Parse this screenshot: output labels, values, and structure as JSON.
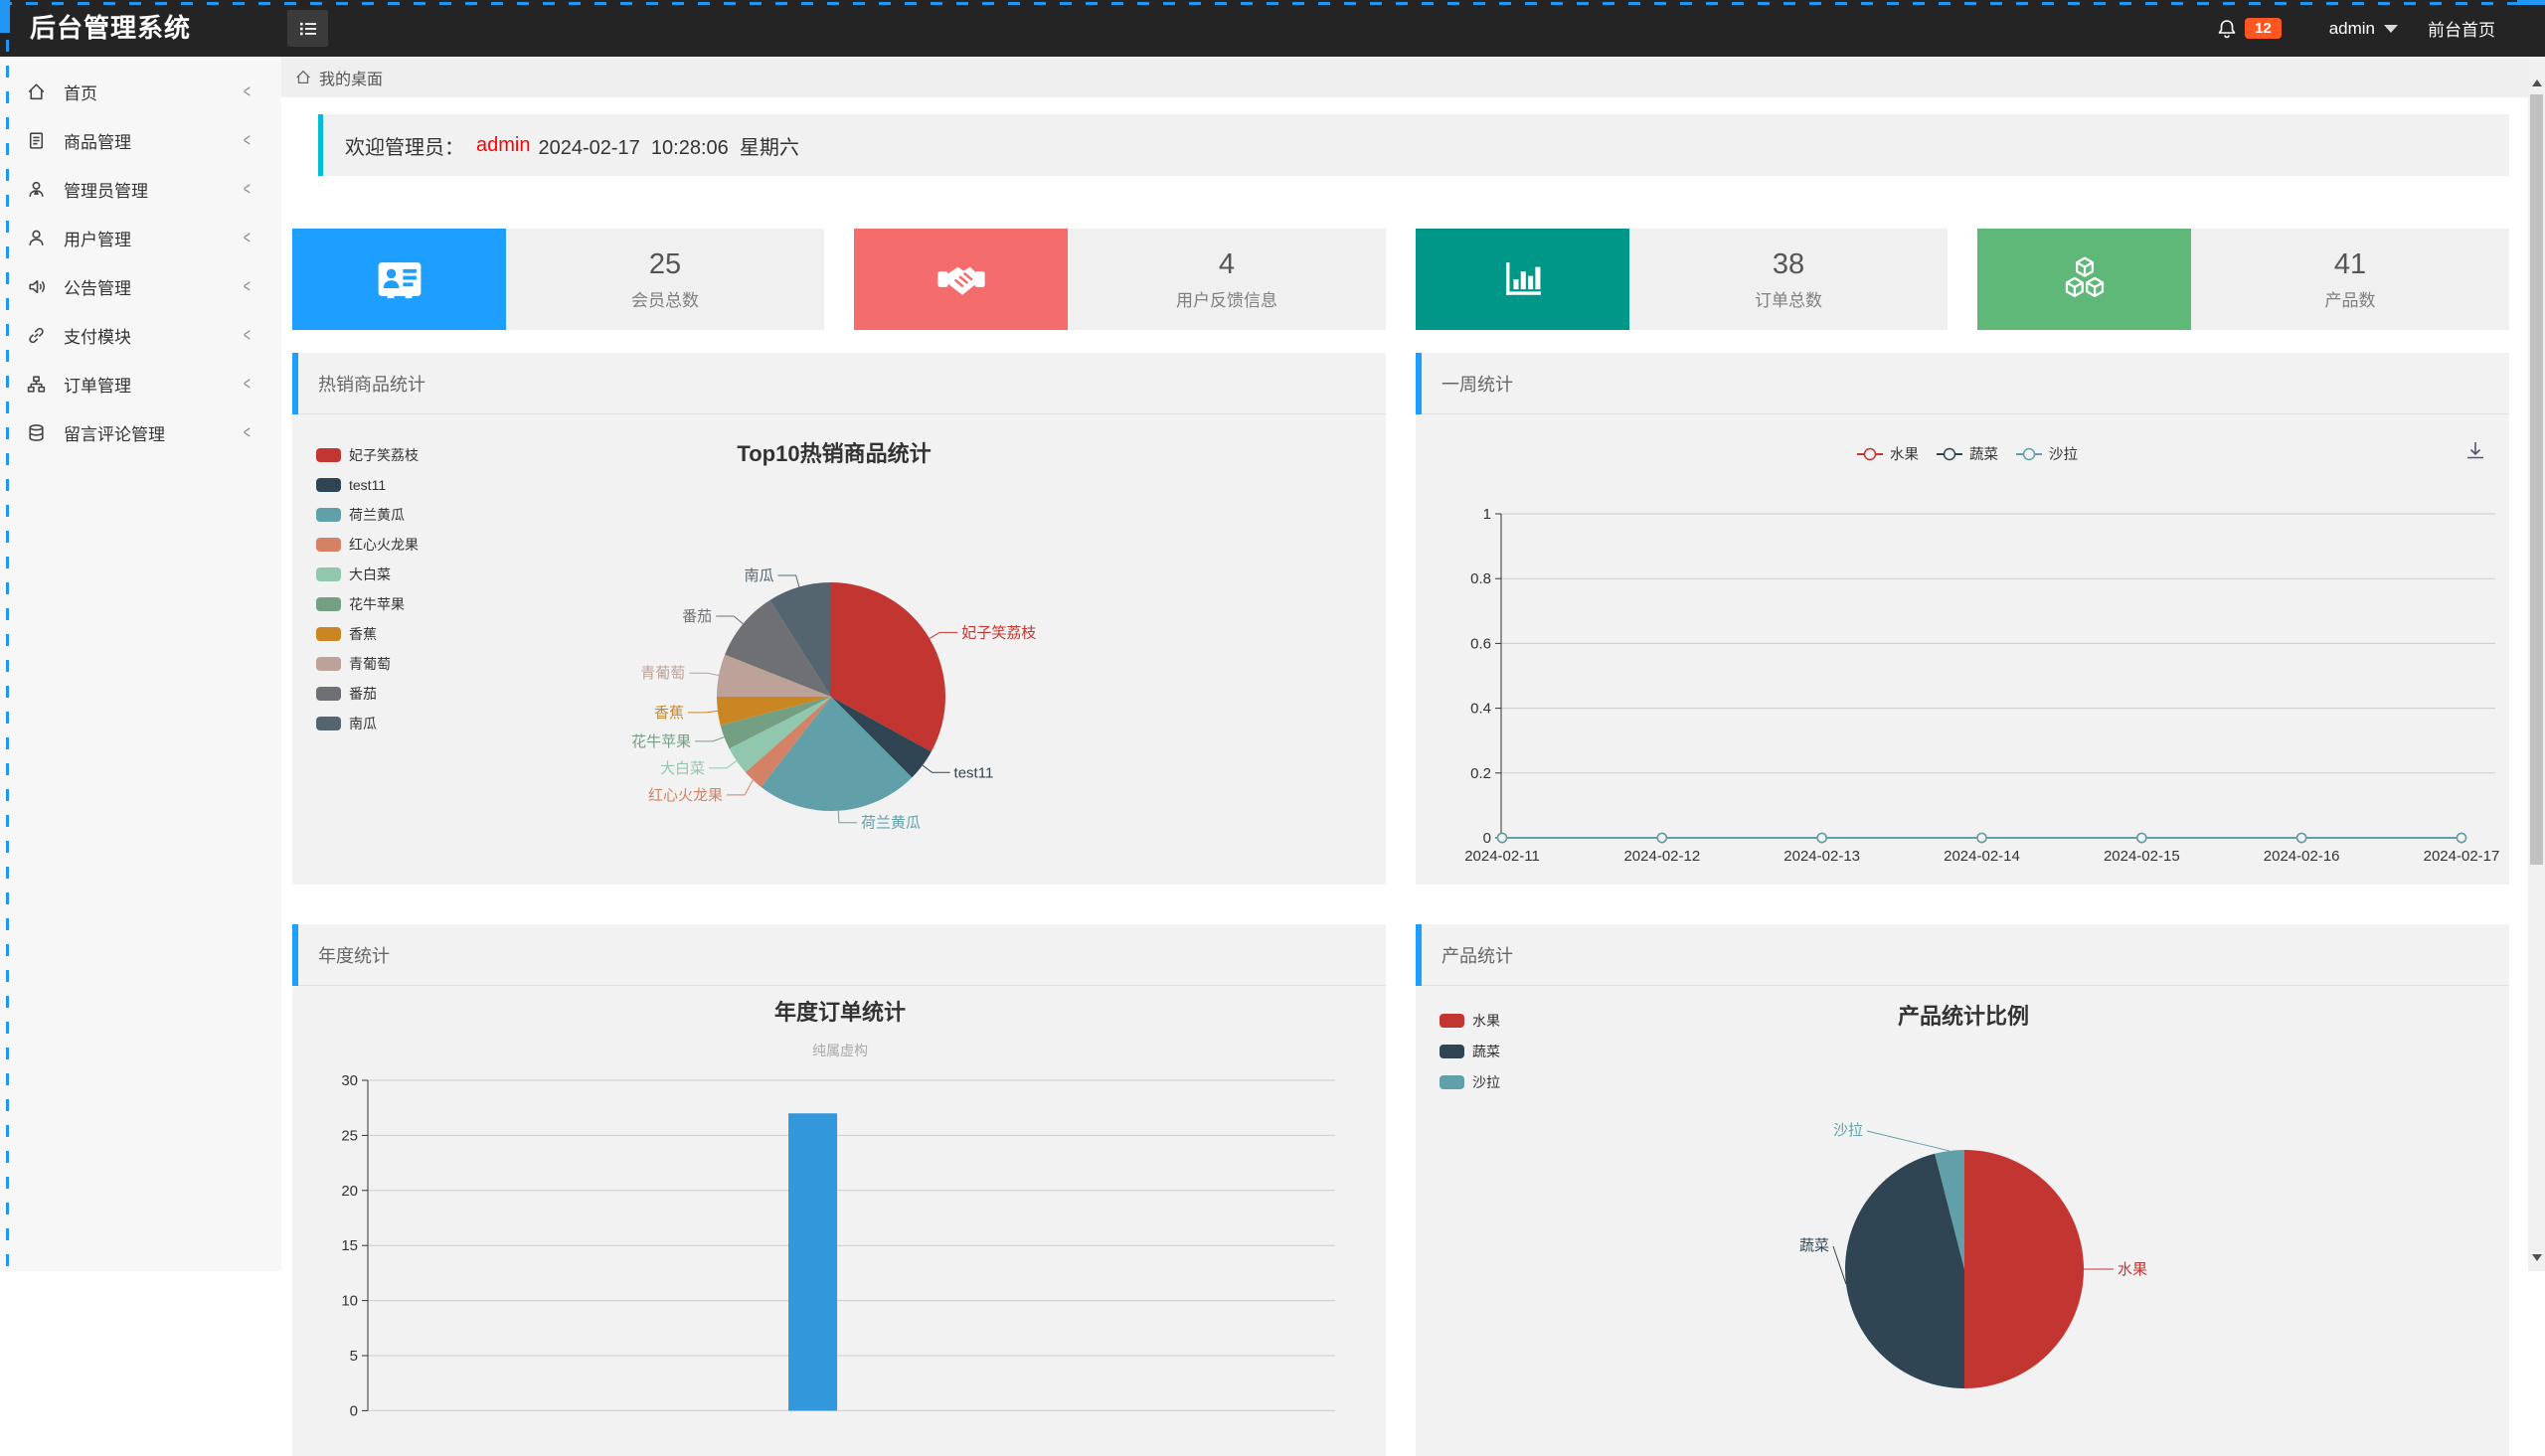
{
  "topbar": {
    "title": "后台管理系统",
    "notification_count": "12",
    "user": "admin",
    "frontend_link": "前台首页",
    "badge_color": "#ff5722"
  },
  "sidebar": {
    "items": [
      {
        "label": "首页",
        "icon": "home-icon"
      },
      {
        "label": "商品管理",
        "icon": "document-icon"
      },
      {
        "label": "管理员管理",
        "icon": "admin-user-icon"
      },
      {
        "label": "用户管理",
        "icon": "user-icon"
      },
      {
        "label": "公告管理",
        "icon": "speaker-icon"
      },
      {
        "label": "支付模块",
        "icon": "link-icon"
      },
      {
        "label": "订单管理",
        "icon": "sitemap-icon"
      },
      {
        "label": "留言评论管理",
        "icon": "database-icon"
      }
    ]
  },
  "breadcrumb": {
    "label": "我的桌面",
    "icon": "home-icon"
  },
  "welcome": {
    "prefix": "欢迎管理员：",
    "username": "admin",
    "datetime": "2024-02-17  10:28:06  星期六",
    "accent_color": "#00bcd4"
  },
  "stat_cards": [
    {
      "value": "25",
      "label": "会员总数",
      "icon": "id-card-icon",
      "color": "#1E9FFF"
    },
    {
      "value": "4",
      "label": "用户反馈信息",
      "icon": "handshake-icon",
      "color": "#f56c6c"
    },
    {
      "value": "38",
      "label": "订单总数",
      "icon": "bar-chart-icon",
      "color": "#009688"
    },
    {
      "value": "41",
      "label": "产品数",
      "icon": "cubes-icon",
      "color": "#5FB878"
    }
  ],
  "panels": [
    {
      "title": "热销商品统计"
    },
    {
      "title": "一周统计"
    },
    {
      "title": "年度统计"
    },
    {
      "title": "产品统计"
    }
  ],
  "chart_data": [
    {
      "type": "pie",
      "panel": "热销商品统计",
      "title": "Top10热销商品统计",
      "legend_position": "left-vertical",
      "note": "slice values are percentages estimated from angles",
      "slices": [
        {
          "name": "妃子笑荔枝",
          "value": 33,
          "color": "#c23531"
        },
        {
          "name": "test11",
          "value": 4.5,
          "color": "#2f4554"
        },
        {
          "name": "荷兰黄瓜",
          "value": 23,
          "color": "#61a0a8"
        },
        {
          "name": "红心火龙果",
          "value": 3,
          "color": "#d48265"
        },
        {
          "name": "大白菜",
          "value": 4,
          "color": "#91c7ae"
        },
        {
          "name": "花牛苹果",
          "value": 3.5,
          "color": "#749f83"
        },
        {
          "name": "香蕉",
          "value": 4,
          "color": "#ca8622"
        },
        {
          "name": "青葡萄",
          "value": 6,
          "color": "#bda29a"
        },
        {
          "name": "番茄",
          "value": 10,
          "color": "#6e7074"
        },
        {
          "name": "南瓜",
          "value": 9,
          "color": "#546570"
        }
      ]
    },
    {
      "type": "line",
      "panel": "一周统计",
      "legend_position": "top-center",
      "toolbox": [
        "download-icon"
      ],
      "x": [
        "2024-02-11",
        "2024-02-12",
        "2024-02-13",
        "2024-02-14",
        "2024-02-15",
        "2024-02-16",
        "2024-02-17"
      ],
      "series": [
        {
          "name": "水果",
          "color": "#c23531",
          "values": [
            0,
            0,
            0,
            0,
            0,
            0,
            0
          ]
        },
        {
          "name": "蔬菜",
          "color": "#2f4554",
          "values": [
            0,
            0,
            0,
            0,
            0,
            0,
            0
          ]
        },
        {
          "name": "沙拉",
          "color": "#61a0a8",
          "values": [
            0,
            0,
            0,
            0,
            0,
            0,
            0
          ]
        }
      ],
      "ylim": [
        0,
        1
      ],
      "yticks": [
        0,
        0.2,
        0.4,
        0.6,
        0.8,
        1
      ]
    },
    {
      "type": "bar",
      "panel": "年度统计",
      "title": "年度订单统计",
      "subtitle": "纯属虚构",
      "bar_color": "#3398DB",
      "yticks_visible": [
        30,
        25,
        20,
        15
      ],
      "ytick_step": 5,
      "ymax": 30,
      "bars_visible": [
        {
          "value": 27,
          "x_fraction": 0.46
        }
      ],
      "note": "x-axis labels cut off at bottom edge of screenshot"
    },
    {
      "type": "pie",
      "panel": "产品统计",
      "title": "产品统计比例",
      "legend_position": "left-vertical",
      "note": "pie clipped at bottom of screenshot; values are estimated percentages",
      "slices": [
        {
          "name": "水果",
          "value": 50,
          "color": "#c23531"
        },
        {
          "name": "蔬菜",
          "value": 46,
          "color": "#2f4554"
        },
        {
          "name": "沙拉",
          "value": 4,
          "color": "#61a0a8"
        }
      ]
    }
  ]
}
